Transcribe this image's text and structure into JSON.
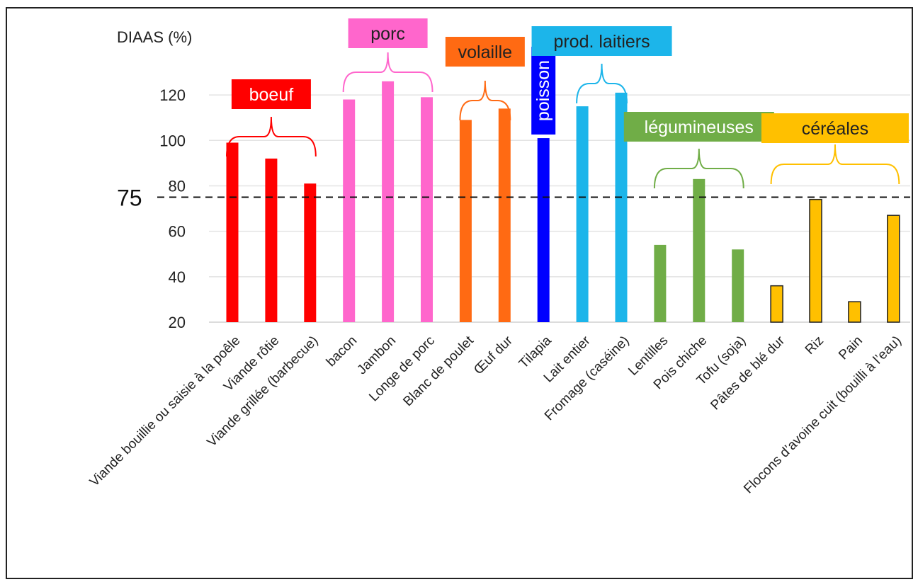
{
  "chart_data": {
    "type": "bar",
    "ylabel": "DIAAS (%)",
    "ylim": [
      20,
      130
    ],
    "yticks": [
      "20",
      "40",
      "60",
      "80",
      "100",
      "120"
    ],
    "grid": true,
    "reference_line": {
      "value": 75,
      "label": "75",
      "style": "dashed"
    },
    "categories": [
      "Viande bouillie ou saisie à la poêle",
      "Viande rôtie",
      "Viande grillée (barbecue)",
      "bacon",
      "Jambon",
      "Longe de porc",
      "Blanc de poulet",
      "Œuf dur",
      "Tilapia",
      "Lait entier",
      "Fromage (caséine)",
      "Lentilles",
      "Pois chiche",
      "Tofu (soja)",
      "Pâtes de blé dur",
      "Riz",
      "Pain",
      "Flocons d’avoine cuit (bouilli à l’eau)"
    ],
    "values": [
      99,
      92,
      81,
      118,
      126,
      119,
      109,
      114,
      101,
      115,
      121,
      54,
      83,
      52,
      36,
      74,
      29,
      67
    ],
    "bar_colors": [
      "#ff0000",
      "#ff0000",
      "#ff0000",
      "#ff66cc",
      "#ff66cc",
      "#ff66cc",
      "#ff6a13",
      "#ff6a13",
      "#0000ff",
      "#1cb5ea",
      "#1cb5ea",
      "#70ad47",
      "#70ad47",
      "#70ad47",
      "#ffc000",
      "#ffc000",
      "#ffc000",
      "#ffc000"
    ],
    "groups": [
      {
        "label": "boeuf",
        "start": 0,
        "end": 2,
        "color": "#ff0000",
        "text_color": "#ffffff"
      },
      {
        "label": "porc",
        "start": 3,
        "end": 5,
        "color": "#ff66cc",
        "text_color": "#222222"
      },
      {
        "label": "volaille",
        "start": 6,
        "end": 7,
        "color": "#ff6a13",
        "text_color": "#222222"
      },
      {
        "label": "poisson",
        "start": 8,
        "end": 8,
        "color": "#0000ff",
        "text_color": "#ffffff"
      },
      {
        "label": "prod. laitiers",
        "start": 9,
        "end": 10,
        "color": "#1cb5ea",
        "text_color": "#222222"
      },
      {
        "label": "légumineuses",
        "start": 11,
        "end": 13,
        "color": "#70ad47",
        "text_color": "#ffffff"
      },
      {
        "label": "céréales",
        "start": 14,
        "end": 17,
        "color": "#ffc000",
        "text_color": "#222222"
      }
    ]
  }
}
